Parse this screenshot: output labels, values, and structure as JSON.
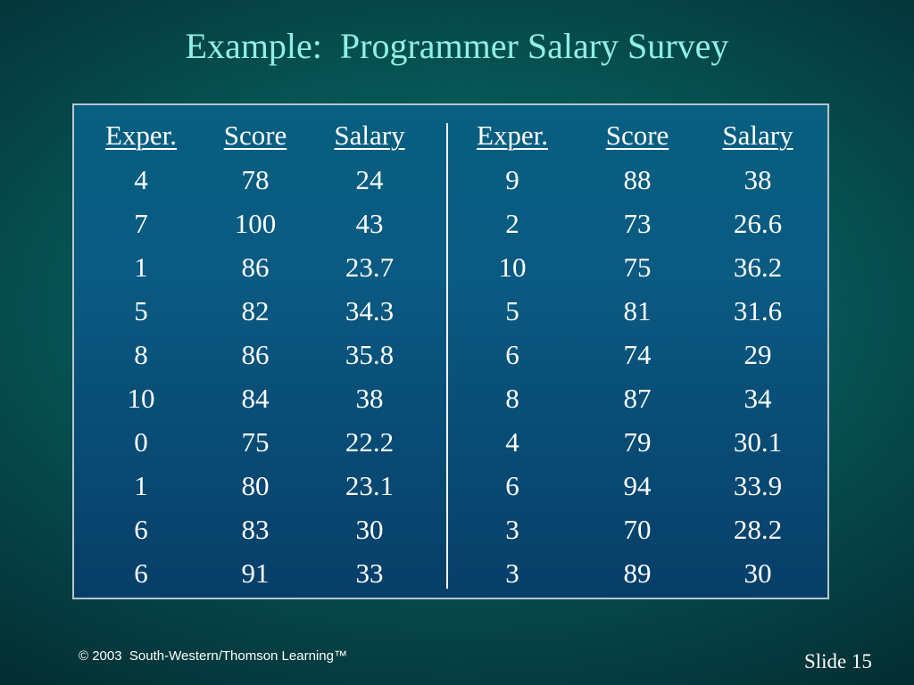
{
  "slide": {
    "title": "Example:  Programmer Salary Survey",
    "copyright": "© 2003  South-Western/Thomson Learning™",
    "slide_number": "Slide 15"
  },
  "table": {
    "headers": [
      "Exper.",
      "Score",
      "Salary",
      "Exper.",
      "Score",
      "Salary"
    ],
    "rows": [
      [
        "4",
        "78",
        "24",
        "9",
        "88",
        "38"
      ],
      [
        "7",
        "100",
        "43",
        "2",
        "73",
        "26.6"
      ],
      [
        "1",
        "86",
        "23.7",
        "10",
        "75",
        "36.2"
      ],
      [
        "5",
        "82",
        "34.3",
        "5",
        "81",
        "31.6"
      ],
      [
        "8",
        "86",
        "35.8",
        "6",
        "74",
        "29"
      ],
      [
        "10",
        "84",
        "38",
        "8",
        "87",
        "34"
      ],
      [
        "0",
        "75",
        "22.2",
        "4",
        "79",
        "30.1"
      ],
      [
        "1",
        "80",
        "23.1",
        "6",
        "94",
        "33.9"
      ],
      [
        "6",
        "83",
        "30",
        "3",
        "70",
        "28.2"
      ],
      [
        "6",
        "91",
        "33",
        "3",
        "89",
        "30"
      ]
    ]
  }
}
